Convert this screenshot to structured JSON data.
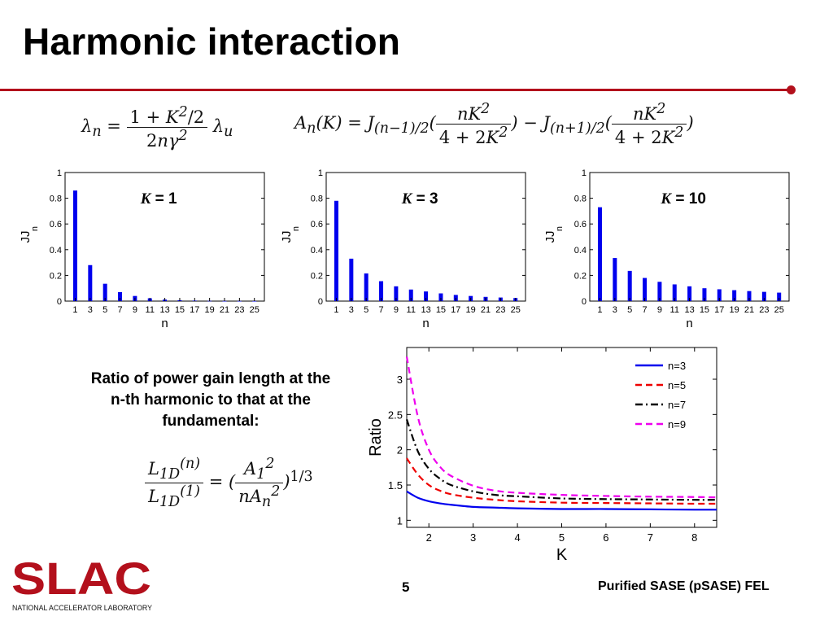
{
  "slide": {
    "title": "Harmonic interaction",
    "caption": "Ratio of power gain length at the n-th harmonic to that at the fundamental:",
    "page_number": "5",
    "footer": "Purified SASE (pSASE) FEL"
  },
  "logo": {
    "text": "SLAC",
    "subtitle": "NATIONAL ACCELERATOR LABORATORY",
    "color": "#b3101c"
  },
  "colors": {
    "accent": "#b3101c",
    "bar": "#0000ee"
  },
  "formulas": {
    "lambda_n": "λn = (1 + K²/2) / (2nγ²) λu",
    "A_n": "An(K) = J(n−1)/2(nK² / (4 + 2K²)) − J(n+1)/2(nK² / (4 + 2K²))",
    "ratio": "L1D(n) / L1D(1) = (A1² / (nAn²))^(1/3)"
  },
  "chart_data": [
    {
      "type": "bar",
      "annotation_var": "K",
      "annotation_value": "= 1",
      "xlabel": "n",
      "ylabel": "JJ",
      "ylabel_sub": "n",
      "categories": [
        1,
        3,
        5,
        7,
        9,
        11,
        13,
        15,
        17,
        19,
        21,
        23,
        25
      ],
      "values": [
        0.86,
        0.28,
        0.135,
        0.07,
        0.04,
        0.022,
        0.012,
        0.007,
        0.004,
        0.002,
        0.001,
        0.001,
        0.0005
      ],
      "ylim": [
        0,
        1
      ],
      "yticks": [
        "0",
        "0.2",
        "0.4",
        "0.6",
        "0.8",
        "1"
      ],
      "color": "#0000ee"
    },
    {
      "type": "bar",
      "annotation_var": "K",
      "annotation_value": "= 3",
      "xlabel": "n",
      "ylabel": "JJ",
      "ylabel_sub": "n",
      "categories": [
        1,
        3,
        5,
        7,
        9,
        11,
        13,
        15,
        17,
        19,
        21,
        23,
        25
      ],
      "values": [
        0.78,
        0.33,
        0.215,
        0.155,
        0.115,
        0.09,
        0.075,
        0.06,
        0.048,
        0.04,
        0.033,
        0.028,
        0.024
      ],
      "ylim": [
        0,
        1
      ],
      "yticks": [
        "0",
        "0.2",
        "0.4",
        "0.6",
        "0.8",
        "1"
      ],
      "color": "#0000ee"
    },
    {
      "type": "bar",
      "annotation_var": "K",
      "annotation_value": "= 10",
      "xlabel": "n",
      "ylabel": "JJ",
      "ylabel_sub": "n",
      "categories": [
        1,
        3,
        5,
        7,
        9,
        11,
        13,
        15,
        17,
        19,
        21,
        23,
        25
      ],
      "values": [
        0.73,
        0.335,
        0.235,
        0.18,
        0.15,
        0.13,
        0.115,
        0.1,
        0.092,
        0.085,
        0.078,
        0.072,
        0.066
      ],
      "ylim": [
        0,
        1
      ],
      "yticks": [
        "0",
        "0.2",
        "0.4",
        "0.6",
        "0.8",
        "1"
      ],
      "color": "#0000ee"
    },
    {
      "type": "line",
      "xlabel": "K",
      "ylabel": "Ratio",
      "xlim": [
        1.5,
        8.5
      ],
      "ylim": [
        0.9,
        3.45
      ],
      "xticks": [
        2,
        3,
        4,
        5,
        6,
        7,
        8
      ],
      "yticks": [
        1,
        1.5,
        2,
        2.5,
        3
      ],
      "legend_position": "top-right",
      "x": [
        1.5,
        1.75,
        2,
        2.25,
        2.5,
        3,
        3.5,
        4,
        5,
        6,
        7,
        8,
        8.5
      ],
      "series": [
        {
          "name": "n=3",
          "color": "#0000ee",
          "dash": "solid",
          "values": [
            1.41,
            1.32,
            1.27,
            1.24,
            1.22,
            1.19,
            1.18,
            1.17,
            1.16,
            1.16,
            1.155,
            1.15,
            1.15
          ]
        },
        {
          "name": "n=5",
          "color": "#ee0000",
          "dash": "dashed",
          "values": [
            1.88,
            1.65,
            1.5,
            1.42,
            1.37,
            1.32,
            1.29,
            1.27,
            1.25,
            1.245,
            1.24,
            1.235,
            1.235
          ]
        },
        {
          "name": "n=7",
          "color": "#000000",
          "dash": "dashdot",
          "values": [
            2.43,
            1.98,
            1.73,
            1.59,
            1.5,
            1.41,
            1.36,
            1.34,
            1.31,
            1.3,
            1.295,
            1.29,
            1.29
          ]
        },
        {
          "name": "n=9",
          "color": "#ee00ee",
          "dash": "dashed",
          "values": [
            3.32,
            2.47,
            2.0,
            1.76,
            1.63,
            1.49,
            1.42,
            1.39,
            1.36,
            1.345,
            1.335,
            1.33,
            1.325
          ]
        }
      ]
    }
  ]
}
